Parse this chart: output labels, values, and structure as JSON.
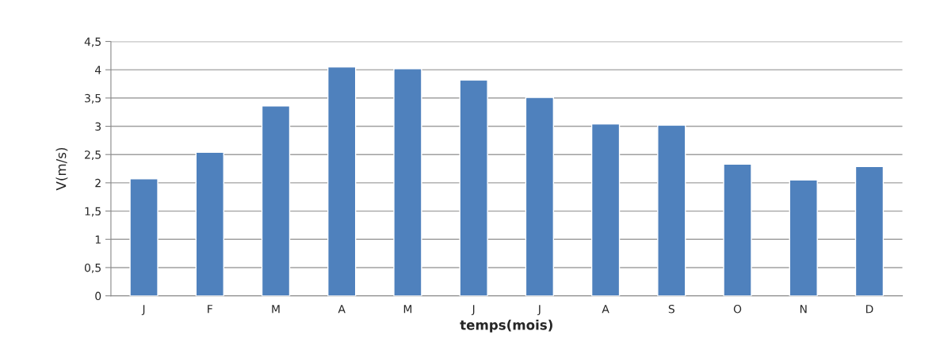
{
  "chart_data": {
    "type": "bar",
    "xlabel": "temps(mois)",
    "ylabel": "V(m/s)",
    "categories": [
      "J",
      "F",
      "M",
      "A",
      "M",
      "J",
      "J",
      "A",
      "S",
      "O",
      "N",
      "D"
    ],
    "series": [
      {
        "color": "#4f81bd",
        "values": [
          2.07,
          2.54,
          3.36,
          4.05,
          4.02,
          3.82,
          3.51,
          3.04,
          3.02,
          2.33,
          2.05,
          2.29
        ]
      }
    ],
    "ylim": [
      0,
      4.5
    ],
    "yticks": [
      0,
      {
        "value": 0.5,
        "label": "0,5"
      },
      1,
      {
        "value": 1.5,
        "label": "1,5"
      },
      2,
      {
        "value": 2.5,
        "label": "2,5"
      },
      3,
      {
        "value": 3.5,
        "label": "3,5"
      },
      4,
      {
        "value": 4.5,
        "label": "4,5"
      }
    ],
    "grid": "y",
    "legend": false
  }
}
